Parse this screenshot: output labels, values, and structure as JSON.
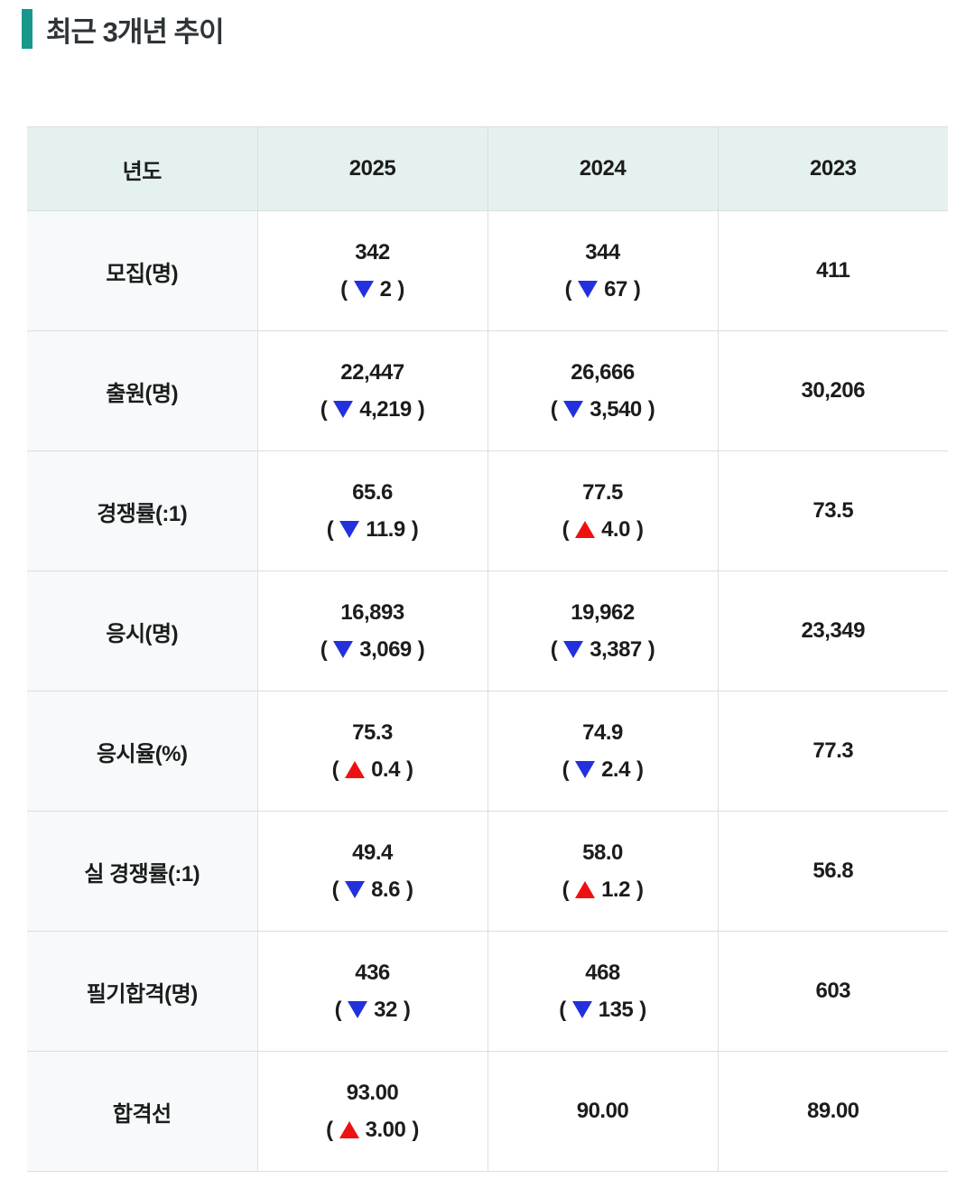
{
  "title": {
    "text": "최근 3개년 추이"
  },
  "colors": {
    "accent": "#18988d",
    "up": "#ee1111",
    "down": "#2231dc",
    "header_bg": "#e4f1ef",
    "label_bg": "#f7fafb",
    "border": "#dadedf"
  },
  "punctuation": {
    "open_paren": "(",
    "close_paren": ")"
  },
  "table": {
    "header": {
      "year_label": "년도",
      "years": [
        "2025",
        "2024",
        "2023"
      ]
    },
    "rows": [
      {
        "label": "모집(명)",
        "cells": [
          {
            "value": "342",
            "change": "2",
            "direction": "down"
          },
          {
            "value": "344",
            "change": "67",
            "direction": "down"
          },
          {
            "value": "411"
          }
        ]
      },
      {
        "label": "출원(명)",
        "cells": [
          {
            "value": "22,447",
            "change": "4,219",
            "direction": "down"
          },
          {
            "value": "26,666",
            "change": "3,540",
            "direction": "down"
          },
          {
            "value": "30,206"
          }
        ]
      },
      {
        "label": "경쟁률(:1)",
        "cells": [
          {
            "value": "65.6",
            "change": "11.9",
            "direction": "down"
          },
          {
            "value": "77.5",
            "change": "4.0",
            "direction": "up"
          },
          {
            "value": "73.5"
          }
        ]
      },
      {
        "label": "응시(명)",
        "cells": [
          {
            "value": "16,893",
            "change": "3,069",
            "direction": "down"
          },
          {
            "value": "19,962",
            "change": "3,387",
            "direction": "down"
          },
          {
            "value": "23,349"
          }
        ]
      },
      {
        "label": "응시율(%)",
        "cells": [
          {
            "value": "75.3",
            "change": "0.4",
            "direction": "up"
          },
          {
            "value": "74.9",
            "change": "2.4",
            "direction": "down"
          },
          {
            "value": "77.3"
          }
        ]
      },
      {
        "label": "실 경쟁률(:1)",
        "cells": [
          {
            "value": "49.4",
            "change": "8.6",
            "direction": "down"
          },
          {
            "value": "58.0",
            "change": "1.2",
            "direction": "up"
          },
          {
            "value": "56.8"
          }
        ]
      },
      {
        "label": "필기합격(명)",
        "cells": [
          {
            "value": "436",
            "change": "32",
            "direction": "down"
          },
          {
            "value": "468",
            "change": "135",
            "direction": "down"
          },
          {
            "value": "603"
          }
        ]
      },
      {
        "label": "합격선",
        "cells": [
          {
            "value": "93.00",
            "change": "3.00",
            "direction": "up"
          },
          {
            "value": "90.00"
          },
          {
            "value": "89.00"
          }
        ]
      }
    ]
  },
  "chart_data": {
    "type": "table",
    "title": "최근 3개년 추이",
    "columns": [
      "년도",
      "2025",
      "2024",
      "2023"
    ],
    "metrics": [
      {
        "name": "모집(명)",
        "values": [
          342,
          344,
          411
        ],
        "changes": [
          -2,
          -67,
          null
        ]
      },
      {
        "name": "출원(명)",
        "values": [
          22447,
          26666,
          30206
        ],
        "changes": [
          -4219,
          -3540,
          null
        ]
      },
      {
        "name": "경쟁률(:1)",
        "values": [
          65.6,
          77.5,
          73.5
        ],
        "changes": [
          -11.9,
          4.0,
          null
        ]
      },
      {
        "name": "응시(명)",
        "values": [
          16893,
          19962,
          23349
        ],
        "changes": [
          -3069,
          -3387,
          null
        ]
      },
      {
        "name": "응시율(%)",
        "values": [
          75.3,
          74.9,
          77.3
        ],
        "changes": [
          0.4,
          -2.4,
          null
        ]
      },
      {
        "name": "실 경쟁률(:1)",
        "values": [
          49.4,
          58.0,
          56.8
        ],
        "changes": [
          -8.6,
          1.2,
          null
        ]
      },
      {
        "name": "필기합격(명)",
        "values": [
          436,
          468,
          603
        ],
        "changes": [
          -32,
          -135,
          null
        ]
      },
      {
        "name": "합격선",
        "values": [
          93.0,
          90.0,
          89.0
        ],
        "changes": [
          3.0,
          null,
          null
        ]
      }
    ]
  }
}
